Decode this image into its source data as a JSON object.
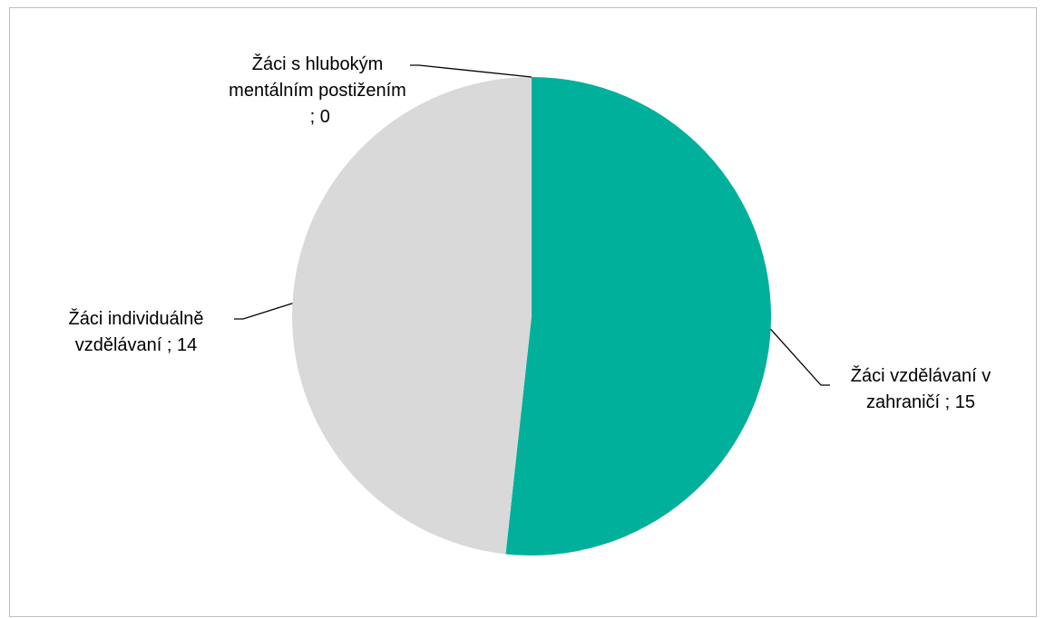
{
  "chart_data": {
    "type": "pie",
    "categories": [
      "Žáci vzdělávaní v zahraničí",
      "Žáci individuálně vzdělávaní",
      "Žáci s hlubokým mentálním postižením"
    ],
    "values": [
      15,
      14,
      0
    ],
    "colors": [
      "#00b09b",
      "#d9d9d9",
      "#a5a5a5"
    ],
    "label_separator": " ; "
  }
}
